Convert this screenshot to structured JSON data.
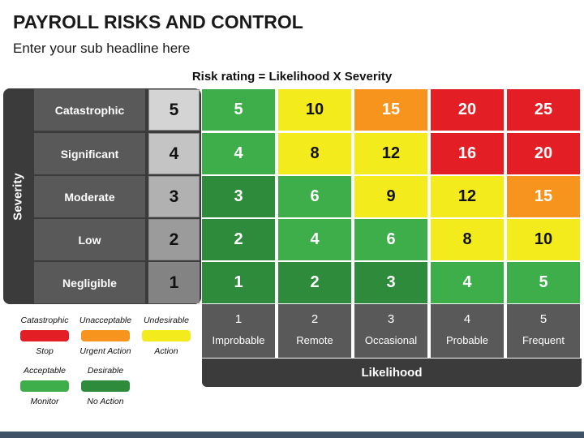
{
  "title": "PAYROLL RISKS AND CONTROL",
  "subtitle": "Enter your sub headline here",
  "formula": "Risk rating = Likelihood X Severity",
  "severity_axis": "Severity",
  "likelihood_axis": "Likelihood",
  "severity_rows": [
    {
      "label": "Catastrophic",
      "num": "5",
      "num_color": "#d4d4d4",
      "values": [
        "5",
        "10",
        "15",
        "20",
        "25"
      ],
      "colors": [
        "#3dae49",
        "#f4eb1d",
        "#f7941d",
        "#e31e24",
        "#e31e24"
      ]
    },
    {
      "label": "Significant",
      "num": "4",
      "num_color": "#c4c4c4",
      "values": [
        "4",
        "8",
        "12",
        "16",
        "20"
      ],
      "colors": [
        "#3dae49",
        "#f4eb1d",
        "#f4eb1d",
        "#e31e24",
        "#e31e24"
      ]
    },
    {
      "label": "Moderate",
      "num": "3",
      "num_color": "#b1b1b1",
      "values": [
        "3",
        "6",
        "9",
        "12",
        "15"
      ],
      "colors": [
        "#2e8b3c",
        "#3dae49",
        "#f4eb1d",
        "#f4eb1d",
        "#f7941d"
      ]
    },
    {
      "label": "Low",
      "num": "2",
      "num_color": "#9b9b9b",
      "values": [
        "2",
        "4",
        "6",
        "8",
        "10"
      ],
      "colors": [
        "#2e8b3c",
        "#3dae49",
        "#3dae49",
        "#f4eb1d",
        "#f4eb1d"
      ]
    },
    {
      "label": "Negligible",
      "num": "1",
      "num_color": "#838383",
      "values": [
        "1",
        "2",
        "3",
        "4",
        "5"
      ],
      "colors": [
        "#2e8b3c",
        "#2e8b3c",
        "#2e8b3c",
        "#3dae49",
        "#3dae49"
      ]
    }
  ],
  "likelihood_cols": [
    {
      "num": "1",
      "label": "Improbable"
    },
    {
      "num": "2",
      "label": "Remote"
    },
    {
      "num": "3",
      "label": "Occasional"
    },
    {
      "num": "4",
      "label": "Probable"
    },
    {
      "num": "5",
      "label": "Frequent"
    }
  ],
  "legend": [
    {
      "top": "Catastrophic",
      "bottom": "Stop",
      "color": "#e31e24"
    },
    {
      "top": "Unacceptable",
      "bottom": "Urgent Action",
      "color": "#f7941d"
    },
    {
      "top": "Undesirable",
      "bottom": "Action",
      "color": "#f4eb1d"
    },
    {
      "top": "Acceptable",
      "bottom": "Monitor",
      "color": "#3dae49"
    },
    {
      "top": "Desirable",
      "bottom": "No Action",
      "color": "#2e8b3c"
    }
  ]
}
